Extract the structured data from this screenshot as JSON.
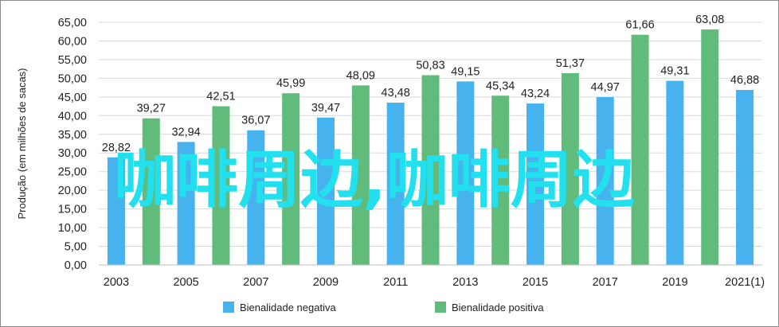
{
  "chart_data": {
    "type": "bar",
    "title": "",
    "xlabel": "",
    "ylabel": "Produção (em milhões de sacas)",
    "ylim": [
      0,
      65
    ],
    "yticks": [
      "0,00",
      "5,00",
      "10,00",
      "15,00",
      "20,00",
      "25,00",
      "30,00",
      "35,00",
      "40,00",
      "45,00",
      "50,00",
      "55,00",
      "60,00",
      "65,00"
    ],
    "grid": true,
    "legend_position": "bottom",
    "categories": [
      "2003",
      "2004",
      "2005",
      "2006",
      "2007",
      "2008",
      "2009",
      "2010",
      "2011",
      "2012",
      "2013",
      "2014",
      "2015",
      "2016",
      "2017",
      "2018",
      "2019",
      "2020",
      "2021(1)"
    ],
    "x_tick_labels": [
      "2003",
      "2005",
      "2007",
      "2009",
      "2011",
      "2013",
      "2015",
      "2017",
      "2019",
      "2021(1)"
    ],
    "values": [
      28.82,
      39.27,
      32.94,
      42.51,
      36.07,
      45.99,
      39.47,
      48.09,
      43.48,
      50.83,
      49.15,
      45.34,
      43.24,
      51.37,
      44.97,
      61.66,
      49.31,
      63.08,
      46.88
    ],
    "value_labels": [
      "28,82",
      "39,27",
      "32,94",
      "42,51",
      "36,07",
      "45,99",
      "39,47",
      "48,09",
      "43,48",
      "50,83",
      "49,15",
      "45,34",
      "43,24",
      "51,37",
      "44,97",
      "61,66",
      "49,31",
      "63,08",
      "46,88"
    ],
    "bar_series": [
      "negativa",
      "positiva",
      "negativa",
      "positiva",
      "negativa",
      "positiva",
      "negativa",
      "positiva",
      "negativa",
      "positiva",
      "negativa",
      "positiva",
      "negativa",
      "positiva",
      "negativa",
      "positiva",
      "negativa",
      "positiva",
      "negativa"
    ],
    "legend": [
      {
        "key": "negativa",
        "label": "Bienalidade negativa",
        "color": "#46b3ef"
      },
      {
        "key": "positiva",
        "label": "Bienalidade positiva",
        "color": "#61bb7b"
      }
    ]
  },
  "watermark": {
    "text": "咖啡周边,咖啡周边",
    "color": "#22e0ee"
  }
}
